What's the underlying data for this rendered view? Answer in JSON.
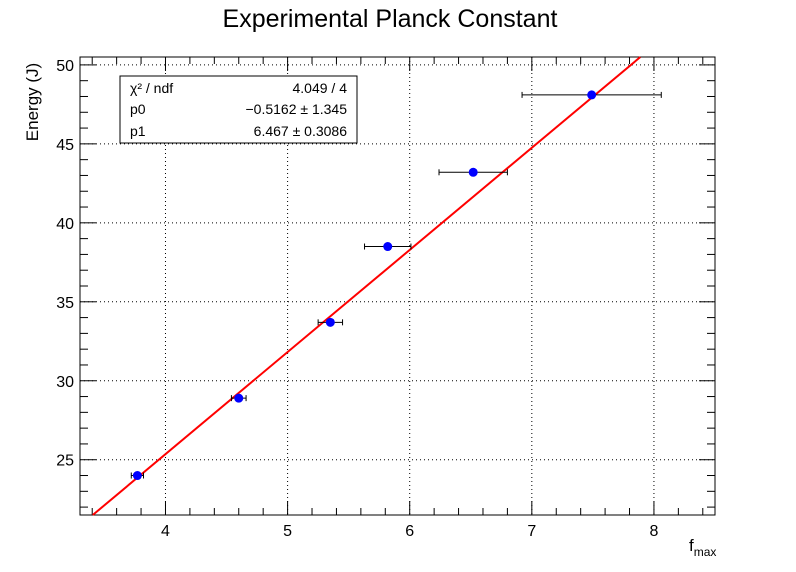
{
  "chart_data": {
    "type": "scatter",
    "title": "Experimental Planck Constant",
    "xlabel": "f",
    "xlabel_subscript": "max",
    "ylabel": "Energy (J)",
    "xlim": [
      3.3,
      8.5
    ],
    "ylim": [
      21.5,
      50.5
    ],
    "x_ticks": [
      4,
      5,
      6,
      7,
      8
    ],
    "y_ticks": [
      25,
      30,
      35,
      40,
      45,
      50
    ],
    "grid": true,
    "points": [
      {
        "x": 3.77,
        "y": 24.0,
        "x_err": 0.05
      },
      {
        "x": 4.6,
        "y": 28.9,
        "x_err": 0.06
      },
      {
        "x": 5.35,
        "y": 33.7,
        "x_err": 0.1
      },
      {
        "x": 5.82,
        "y": 38.5,
        "x_err": 0.19
      },
      {
        "x": 6.52,
        "y": 43.2,
        "x_err": 0.28
      },
      {
        "x": 7.49,
        "y": 48.1,
        "x_err": 0.57
      }
    ],
    "fit": {
      "p0": -0.5162,
      "p1": 6.467,
      "color": "#ff0000"
    },
    "marker_color": "#0000ff",
    "stats": {
      "rows": [
        {
          "label": "χ² / ndf",
          "value": "4.049 / 4"
        },
        {
          "label": "p0",
          "value": "−0.5162 ± 1.345"
        },
        {
          "label": "p1",
          "value": "6.467 ± 0.3086"
        }
      ]
    }
  }
}
